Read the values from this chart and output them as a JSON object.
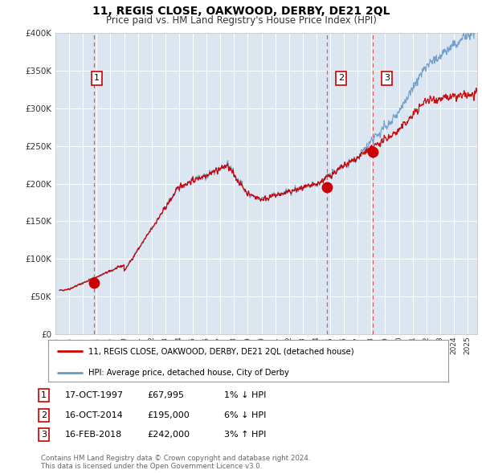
{
  "title": "11, REGIS CLOSE, OAKWOOD, DERBY, DE21 2QL",
  "subtitle": "Price paid vs. HM Land Registry's House Price Index (HPI)",
  "background_color": "#ffffff",
  "plot_bg_color": "#dce6f1",
  "ylim": [
    0,
    400000
  ],
  "yticks": [
    0,
    50000,
    100000,
    150000,
    200000,
    250000,
    300000,
    350000,
    400000
  ],
  "xlim_start": 1995.3,
  "xlim_end": 2025.7,
  "sale_dates": [
    1997.79,
    2014.79,
    2018.12
  ],
  "sale_prices": [
    67995,
    195000,
    242000
  ],
  "sale_labels": [
    "1",
    "2",
    "3"
  ],
  "sale_info": [
    {
      "num": "1",
      "date": "17-OCT-1997",
      "price": "£67,995",
      "hpi": "1% ↓ HPI"
    },
    {
      "num": "2",
      "date": "16-OCT-2014",
      "price": "£195,000",
      "hpi": "6% ↓ HPI"
    },
    {
      "num": "3",
      "date": "16-FEB-2018",
      "price": "£242,000",
      "hpi": "3% ↑ HPI"
    }
  ],
  "legend_label_red": "11, REGIS CLOSE, OAKWOOD, DERBY, DE21 2QL (detached house)",
  "legend_label_blue": "HPI: Average price, detached house, City of Derby",
  "footer": "Contains HM Land Registry data © Crown copyright and database right 2024.\nThis data is licensed under the Open Government Licence v3.0.",
  "red_color": "#cc0000",
  "blue_color": "#6699cc",
  "n_points": 1500
}
